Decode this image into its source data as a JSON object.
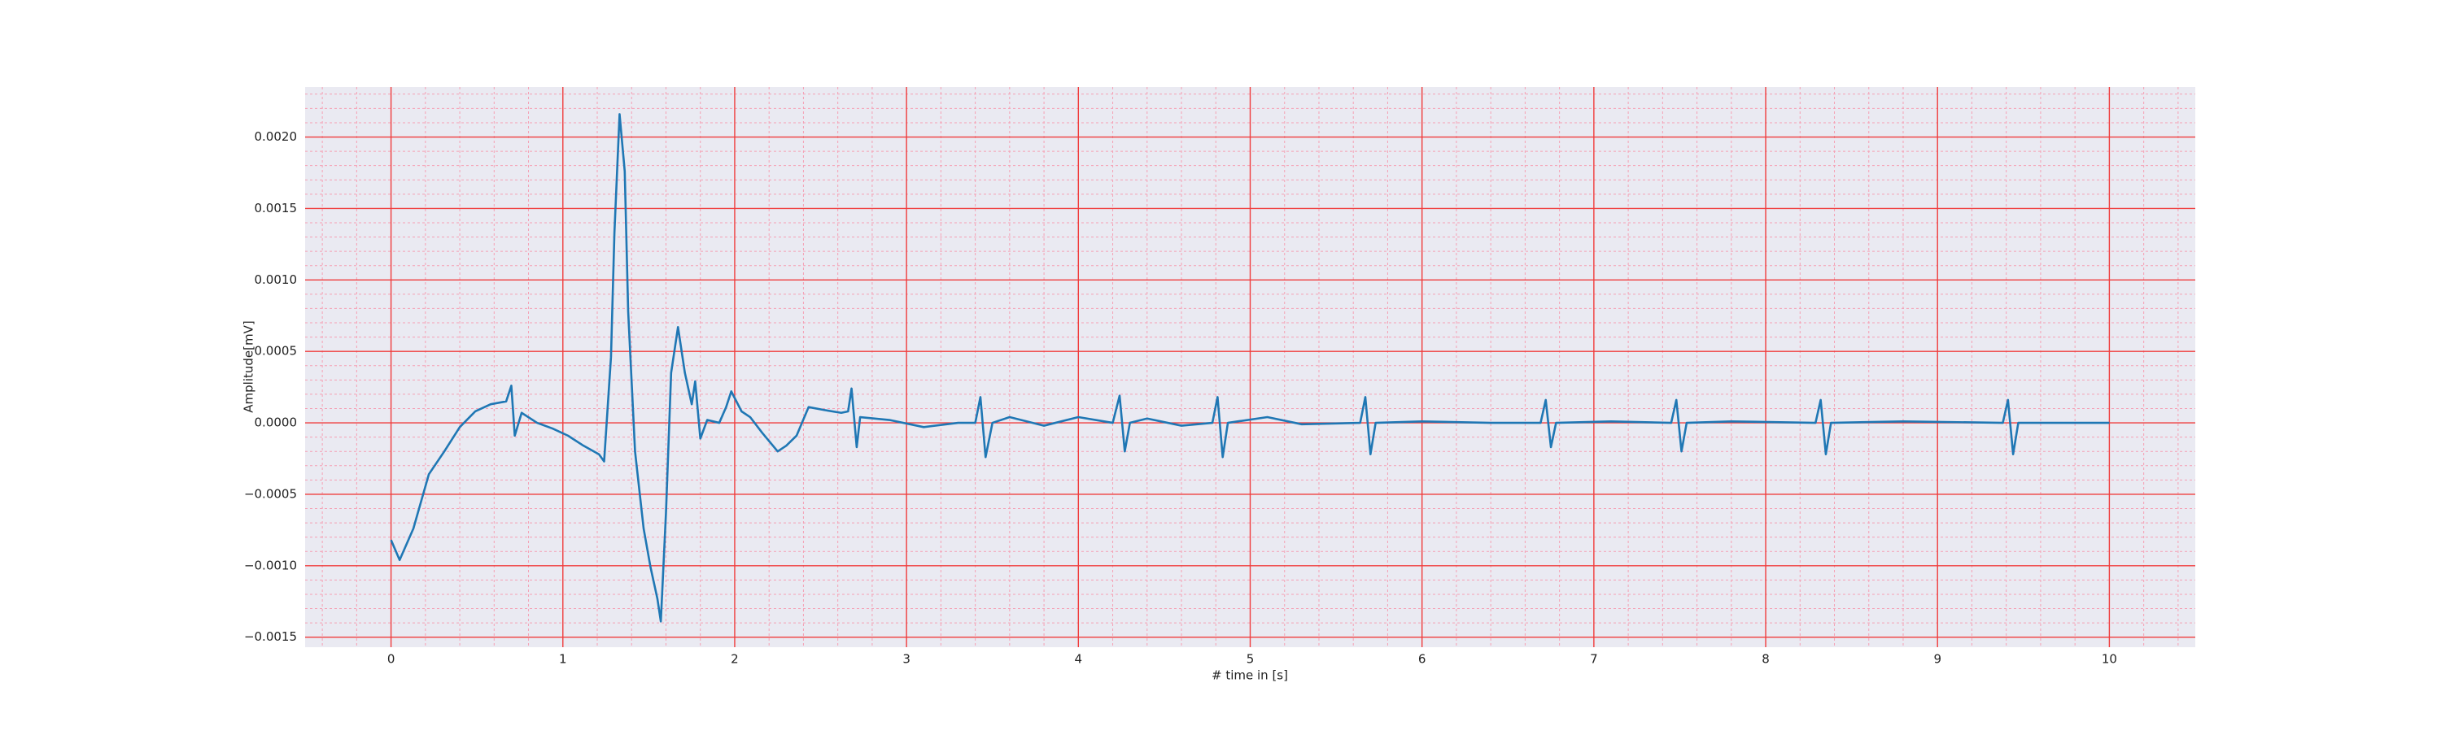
{
  "chart_data": {
    "type": "line",
    "xlabel": "# time in [s]",
    "ylabel": "Amplitude[mV]",
    "xlim": [
      -0.5,
      10.5
    ],
    "ylim": [
      -0.00157,
      0.00235
    ],
    "xticks": [
      0,
      1,
      2,
      3,
      4,
      5,
      6,
      7,
      8,
      9,
      10
    ],
    "yticks": [
      {
        "value": -0.0015,
        "label": "−0.0015"
      },
      {
        "value": -0.001,
        "label": "−0.0010"
      },
      {
        "value": -0.0005,
        "label": "−0.0005"
      },
      {
        "value": 0,
        "label": "0.0000"
      },
      {
        "value": 0.0005,
        "label": "0.0005"
      },
      {
        "value": 0.001,
        "label": "0.0010"
      },
      {
        "value": 0.0015,
        "label": "0.0015"
      },
      {
        "value": 0.002,
        "label": "0.0020"
      }
    ],
    "grid": true,
    "grid_color": "#f03c3c",
    "minor_grid": true,
    "minor_per_major": 5,
    "minor_grid_color": "#f5a0b4",
    "background": "#eaeaf2",
    "series": [
      {
        "color": "#1f77b4",
        "x": [
          0,
          0.05,
          0.13,
          0.22,
          0.31,
          0.4,
          0.49,
          0.58,
          0.67,
          0.7,
          0.72,
          0.76,
          0.85,
          0.94,
          1.03,
          1.12,
          1.21,
          1.24,
          1.28,
          1.3,
          1.33,
          1.36,
          1.38,
          1.42,
          1.47,
          1.51,
          1.55,
          1.57,
          1.6,
          1.63,
          1.67,
          1.71,
          1.75,
          1.77,
          1.8,
          1.84,
          1.91,
          1.95,
          1.98,
          2.04,
          2.09,
          2.16,
          2.25,
          2.3,
          2.36,
          2.43,
          2.52,
          2.62,
          2.66,
          2.68,
          2.71,
          2.73,
          2.9,
          3.1,
          3.3,
          3.4,
          3.43,
          3.46,
          3.5,
          3.6,
          3.8,
          4.0,
          4.2,
          4.24,
          4.27,
          4.3,
          4.4,
          4.6,
          4.78,
          4.81,
          4.84,
          4.87,
          5.1,
          5.3,
          5.64,
          5.67,
          5.7,
          5.73,
          6.0,
          6.4,
          6.69,
          6.72,
          6.75,
          6.78,
          7.1,
          7.45,
          7.48,
          7.51,
          7.54,
          7.8,
          8.29,
          8.32,
          8.35,
          8.38,
          8.8,
          9.38,
          9.41,
          9.44,
          9.47,
          10.0
        ],
        "values": [
          -0.00082,
          -0.00096,
          -0.00074,
          -0.00036,
          -0.0002,
          -3e-05,
          8e-05,
          0.00013,
          0.00015,
          0.00026,
          -9e-05,
          7e-05,
          0,
          -4e-05,
          -9e-05,
          -0.00016,
          -0.00022,
          -0.00027,
          0.00046,
          0.00133,
          0.00216,
          0.00176,
          0.00078,
          -0.0002,
          -0.00074,
          -0.00101,
          -0.00123,
          -0.00139,
          -0.00063,
          0.00035,
          0.00067,
          0.00035,
          0.00013,
          0.00029,
          -0.00011,
          2e-05,
          0,
          0.00011,
          0.00022,
          8e-05,
          4e-05,
          -7e-05,
          -0.0002,
          -0.00016,
          -9e-05,
          0.00011,
          9e-05,
          7e-05,
          8e-05,
          0.00024,
          -0.00017,
          4e-05,
          2e-05,
          -3e-05,
          0,
          0,
          0.00018,
          -0.00024,
          0,
          4e-05,
          -2e-05,
          4e-05,
          0,
          0.00019,
          -0.0002,
          0,
          3e-05,
          -2e-05,
          0,
          0.00018,
          -0.00024,
          0,
          4e-05,
          -1e-05,
          0,
          0.00018,
          -0.00022,
          0,
          1e-05,
          0,
          0,
          0.00016,
          -0.00017,
          0,
          1e-05,
          0,
          0.00016,
          -0.0002,
          0,
          1e-05,
          0,
          0.00016,
          -0.00022,
          0,
          1e-05,
          0,
          0.00016,
          -0.00022,
          0,
          0
        ]
      }
    ]
  }
}
